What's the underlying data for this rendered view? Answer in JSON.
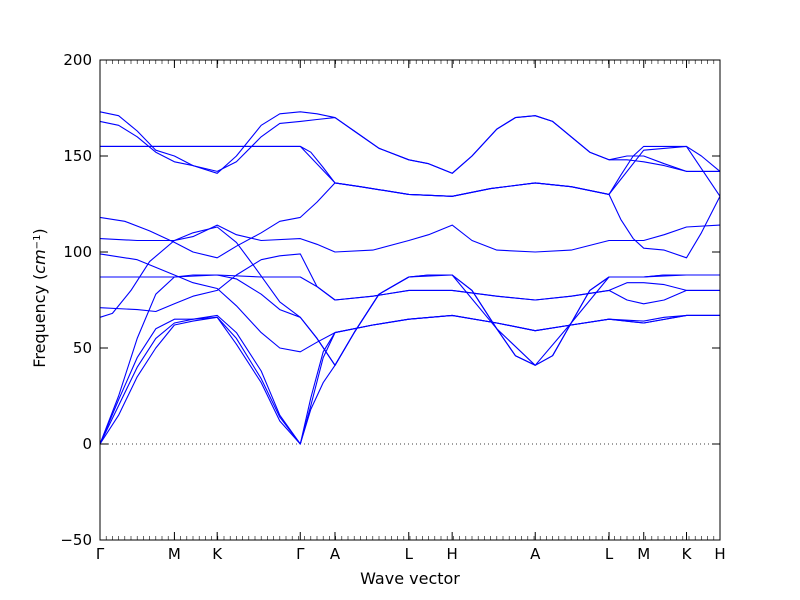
{
  "chart_data": {
    "type": "line",
    "xlabel": "Wave vector",
    "ylabel": "Frequency (",
    "ylabel_unit": "cm",
    "ylabel_exp": "−1",
    "ylabel_close": ")",
    "ylim": [
      -50,
      200
    ],
    "yticks": [
      -50,
      0,
      50,
      100,
      150,
      200
    ],
    "ytick_labels": [
      "−50",
      "0",
      "50",
      "100",
      "150",
      "200"
    ],
    "x_points": [
      {
        "label": "Γ",
        "x": 0.0
      },
      {
        "label": "M",
        "x": 0.12
      },
      {
        "label": "K",
        "x": 0.189
      },
      {
        "label": "Γ",
        "x": 0.323
      },
      {
        "label": "A",
        "x": 0.379
      },
      {
        "label": "L",
        "x": 0.498
      },
      {
        "label": "H",
        "x": 0.568
      },
      {
        "label": "A",
        "x": 0.702
      },
      {
        "label": "L",
        "x": 0.821
      },
      {
        "label": "M",
        "x": 0.877
      },
      {
        "label": "K",
        "x": 0.946
      },
      {
        "label": "H",
        "x": 1.0
      }
    ],
    "zero_line": true,
    "series_color": "#0000ff",
    "branches": [
      [
        [
          0,
          173
        ],
        [
          0.03,
          171
        ],
        [
          0.06,
          163
        ],
        [
          0.09,
          153
        ],
        [
          0.12,
          150
        ],
        [
          0.15,
          145
        ],
        [
          0.189,
          141
        ],
        [
          0.22,
          150
        ],
        [
          0.26,
          166
        ],
        [
          0.29,
          172
        ],
        [
          0.323,
          173
        ],
        [
          0.35,
          172
        ],
        [
          0.379,
          170
        ],
        [
          0.41,
          163
        ],
        [
          0.45,
          154
        ],
        [
          0.498,
          148
        ],
        [
          0.53,
          146
        ],
        [
          0.568,
          141
        ],
        [
          0.6,
          150
        ],
        [
          0.64,
          164
        ],
        [
          0.67,
          170
        ],
        [
          0.702,
          171
        ],
        [
          0.73,
          168
        ],
        [
          0.76,
          160
        ],
        [
          0.79,
          152
        ],
        [
          0.821,
          148
        ],
        [
          0.85,
          150
        ],
        [
          0.877,
          150
        ],
        [
          0.91,
          146
        ],
        [
          0.946,
          142
        ],
        [
          1,
          142
        ]
      ],
      [
        [
          0,
          168
        ],
        [
          0.03,
          166
        ],
        [
          0.06,
          160
        ],
        [
          0.09,
          152
        ],
        [
          0.12,
          147
        ],
        [
          0.15,
          145
        ],
        [
          0.189,
          142
        ],
        [
          0.22,
          147
        ],
        [
          0.26,
          160
        ],
        [
          0.29,
          167
        ],
        [
          0.323,
          168
        ],
        [
          0.35,
          169
        ],
        [
          0.379,
          170
        ],
        [
          0.41,
          163
        ],
        [
          0.45,
          154
        ],
        [
          0.498,
          148
        ],
        [
          0.53,
          146
        ],
        [
          0.568,
          141
        ],
        [
          0.6,
          150
        ],
        [
          0.64,
          164
        ],
        [
          0.67,
          170
        ],
        [
          0.702,
          171
        ],
        [
          0.73,
          168
        ],
        [
          0.76,
          160
        ],
        [
          0.79,
          152
        ],
        [
          0.821,
          148
        ],
        [
          0.85,
          148
        ],
        [
          0.877,
          147
        ],
        [
          0.91,
          145
        ],
        [
          0.946,
          142
        ],
        [
          1,
          142
        ]
      ],
      [
        [
          0,
          155
        ],
        [
          0.12,
          155
        ],
        [
          0.189,
          155
        ],
        [
          0.323,
          155
        ],
        [
          0.34,
          152
        ],
        [
          0.36,
          144
        ],
        [
          0.379,
          136
        ],
        [
          0.42,
          134
        ],
        [
          0.498,
          130
        ],
        [
          0.568,
          129
        ],
        [
          0.63,
          133
        ],
        [
          0.702,
          136
        ],
        [
          0.76,
          134
        ],
        [
          0.821,
          130
        ],
        [
          0.84,
          140
        ],
        [
          0.86,
          150
        ],
        [
          0.877,
          155
        ],
        [
          0.946,
          155
        ],
        [
          0.97,
          150
        ],
        [
          1,
          142
        ]
      ],
      [
        [
          0,
          155
        ],
        [
          0.12,
          155
        ],
        [
          0.189,
          155
        ],
        [
          0.323,
          155
        ],
        [
          0.379,
          136
        ],
        [
          0.42,
          134
        ],
        [
          0.498,
          130
        ],
        [
          0.568,
          129
        ],
        [
          0.63,
          133
        ],
        [
          0.702,
          136
        ],
        [
          0.76,
          134
        ],
        [
          0.821,
          130
        ],
        [
          0.877,
          153
        ],
        [
          0.946,
          155
        ],
        [
          1,
          129
        ]
      ],
      [
        [
          0,
          118
        ],
        [
          0.04,
          116
        ],
        [
          0.08,
          111
        ],
        [
          0.12,
          105
        ],
        [
          0.15,
          100
        ],
        [
          0.189,
          97
        ],
        [
          0.22,
          103
        ],
        [
          0.26,
          110
        ],
        [
          0.29,
          116
        ],
        [
          0.323,
          118
        ],
        [
          0.35,
          126
        ],
        [
          0.379,
          136
        ],
        [
          0.42,
          134
        ],
        [
          0.498,
          130
        ],
        [
          0.568,
          129
        ],
        [
          0.63,
          133
        ],
        [
          0.702,
          136
        ],
        [
          0.76,
          134
        ],
        [
          0.821,
          130
        ],
        [
          0.84,
          117
        ],
        [
          0.86,
          107
        ],
        [
          0.877,
          102
        ],
        [
          0.91,
          101
        ],
        [
          0.946,
          97
        ],
        [
          0.97,
          110
        ],
        [
          1,
          129
        ]
      ],
      [
        [
          0,
          107
        ],
        [
          0.06,
          106
        ],
        [
          0.12,
          106
        ],
        [
          0.15,
          108
        ],
        [
          0.189,
          114
        ],
        [
          0.22,
          109
        ],
        [
          0.26,
          106
        ],
        [
          0.323,
          107
        ],
        [
          0.35,
          104
        ],
        [
          0.379,
          100
        ],
        [
          0.44,
          101
        ],
        [
          0.498,
          106
        ],
        [
          0.53,
          109
        ],
        [
          0.568,
          114
        ],
        [
          0.6,
          106
        ],
        [
          0.64,
          101
        ],
        [
          0.702,
          100
        ],
        [
          0.76,
          101
        ],
        [
          0.821,
          106
        ],
        [
          0.877,
          106
        ],
        [
          0.91,
          109
        ],
        [
          0.946,
          113
        ],
        [
          1,
          114
        ]
      ],
      [
        [
          0,
          99
        ],
        [
          0.06,
          96
        ],
        [
          0.12,
          88
        ],
        [
          0.15,
          84
        ],
        [
          0.189,
          81
        ],
        [
          0.22,
          72
        ],
        [
          0.26,
          58
        ],
        [
          0.29,
          50
        ],
        [
          0.323,
          48
        ],
        [
          0.35,
          53
        ],
        [
          0.379,
          58
        ],
        [
          0.44,
          62
        ],
        [
          0.498,
          65
        ],
        [
          0.568,
          67
        ],
        [
          0.64,
          63
        ],
        [
          0.702,
          59
        ],
        [
          0.76,
          62
        ],
        [
          0.821,
          65
        ],
        [
          0.877,
          64
        ],
        [
          0.91,
          66
        ],
        [
          0.946,
          67
        ],
        [
          1,
          67
        ]
      ],
      [
        [
          0,
          87
        ],
        [
          0.12,
          87
        ],
        [
          0.189,
          88
        ],
        [
          0.26,
          87
        ],
        [
          0.323,
          87
        ],
        [
          0.35,
          82
        ],
        [
          0.379,
          75
        ],
        [
          0.44,
          77
        ],
        [
          0.498,
          80
        ],
        [
          0.568,
          80
        ],
        [
          0.64,
          77
        ],
        [
          0.702,
          75
        ],
        [
          0.76,
          77
        ],
        [
          0.821,
          80
        ],
        [
          0.85,
          84
        ],
        [
          0.877,
          84
        ],
        [
          0.91,
          83
        ],
        [
          0.946,
          80
        ],
        [
          1,
          80
        ]
      ],
      [
        [
          0,
          71
        ],
        [
          0.06,
          70
        ],
        [
          0.09,
          69
        ],
        [
          0.12,
          73
        ],
        [
          0.15,
          77
        ],
        [
          0.189,
          80
        ],
        [
          0.22,
          88
        ],
        [
          0.26,
          96
        ],
        [
          0.29,
          98
        ],
        [
          0.323,
          99
        ],
        [
          0.35,
          82
        ],
        [
          0.379,
          75
        ],
        [
          0.44,
          77
        ],
        [
          0.498,
          80
        ],
        [
          0.568,
          80
        ],
        [
          0.64,
          77
        ],
        [
          0.702,
          75
        ],
        [
          0.76,
          77
        ],
        [
          0.821,
          80
        ],
        [
          0.85,
          75
        ],
        [
          0.877,
          73
        ],
        [
          0.91,
          75
        ],
        [
          0.946,
          80
        ],
        [
          1,
          80
        ]
      ],
      [
        [
          0,
          66
        ],
        [
          0.02,
          68
        ],
        [
          0.05,
          80
        ],
        [
          0.08,
          95
        ],
        [
          0.12,
          106
        ],
        [
          0.15,
          110
        ],
        [
          0.189,
          113
        ],
        [
          0.22,
          105
        ],
        [
          0.25,
          92
        ],
        [
          0.29,
          74
        ],
        [
          0.323,
          66
        ],
        [
          0.35,
          55
        ],
        [
          0.379,
          41
        ],
        [
          0.41,
          58
        ],
        [
          0.45,
          78
        ],
        [
          0.498,
          87
        ],
        [
          0.53,
          88
        ],
        [
          0.568,
          88
        ],
        [
          0.6,
          80
        ],
        [
          0.64,
          60
        ],
        [
          0.67,
          46
        ],
        [
          0.702,
          41
        ],
        [
          0.73,
          46
        ],
        [
          0.76,
          63
        ],
        [
          0.79,
          80
        ],
        [
          0.821,
          87
        ],
        [
          0.877,
          87
        ],
        [
          0.91,
          88
        ],
        [
          0.946,
          88
        ],
        [
          1,
          88
        ]
      ],
      [
        [
          0,
          0
        ],
        [
          0.03,
          25
        ],
        [
          0.06,
          55
        ],
        [
          0.09,
          78
        ],
        [
          0.12,
          87
        ],
        [
          0.15,
          88
        ],
        [
          0.189,
          88
        ],
        [
          0.22,
          86
        ],
        [
          0.26,
          78
        ],
        [
          0.29,
          70
        ],
        [
          0.323,
          66
        ],
        [
          0.35,
          55
        ],
        [
          0.379,
          41
        ],
        [
          0.41,
          58
        ],
        [
          0.45,
          78
        ],
        [
          0.498,
          87
        ],
        [
          0.53,
          88
        ],
        [
          0.568,
          88
        ],
        [
          0.6,
          80
        ],
        [
          0.64,
          60
        ],
        [
          0.67,
          46
        ],
        [
          0.702,
          41
        ],
        [
          0.73,
          46
        ],
        [
          0.76,
          63
        ],
        [
          0.79,
          80
        ],
        [
          0.821,
          87
        ],
        [
          0.877,
          87
        ],
        [
          0.91,
          88
        ],
        [
          0.946,
          88
        ],
        [
          1,
          88
        ]
      ],
      [
        [
          0,
          0
        ],
        [
          0.03,
          23
        ],
        [
          0.06,
          45
        ],
        [
          0.09,
          60
        ],
        [
          0.12,
          65
        ],
        [
          0.15,
          65
        ],
        [
          0.189,
          67
        ],
        [
          0.22,
          58
        ],
        [
          0.26,
          38
        ],
        [
          0.29,
          15
        ],
        [
          0.323,
          0
        ],
        [
          0.34,
          20
        ],
        [
          0.36,
          45
        ],
        [
          0.379,
          58
        ],
        [
          0.44,
          62
        ],
        [
          0.498,
          65
        ],
        [
          0.568,
          67
        ],
        [
          0.64,
          63
        ],
        [
          0.702,
          59
        ],
        [
          0.76,
          62
        ],
        [
          0.821,
          65
        ],
        [
          0.877,
          63
        ],
        [
          0.946,
          67
        ],
        [
          1,
          67
        ]
      ],
      [
        [
          0,
          0
        ],
        [
          0.03,
          20
        ],
        [
          0.06,
          40
        ],
        [
          0.09,
          55
        ],
        [
          0.12,
          63
        ],
        [
          0.15,
          65
        ],
        [
          0.189,
          66
        ],
        [
          0.22,
          55
        ],
        [
          0.26,
          34
        ],
        [
          0.29,
          14
        ],
        [
          0.323,
          0
        ],
        [
          0.34,
          18
        ],
        [
          0.36,
          32
        ],
        [
          0.379,
          41
        ],
        [
          0.41,
          58
        ],
        [
          0.45,
          78
        ],
        [
          0.498,
          87
        ],
        [
          0.568,
          88
        ],
        [
          0.64,
          60
        ],
        [
          0.702,
          41
        ],
        [
          0.76,
          63
        ],
        [
          0.821,
          87
        ],
        [
          0.877,
          87
        ],
        [
          0.946,
          88
        ],
        [
          1,
          88
        ]
      ],
      [
        [
          0,
          0
        ],
        [
          0.03,
          15
        ],
        [
          0.06,
          35
        ],
        [
          0.09,
          50
        ],
        [
          0.12,
          62
        ],
        [
          0.15,
          64
        ],
        [
          0.189,
          66
        ],
        [
          0.22,
          52
        ],
        [
          0.26,
          32
        ],
        [
          0.29,
          12
        ],
        [
          0.323,
          0
        ],
        [
          0.34,
          24
        ],
        [
          0.36,
          48
        ],
        [
          0.379,
          58
        ],
        [
          0.44,
          62
        ],
        [
          0.498,
          65
        ],
        [
          0.568,
          67
        ],
        [
          0.64,
          63
        ],
        [
          0.702,
          59
        ],
        [
          0.76,
          62
        ],
        [
          0.821,
          65
        ],
        [
          0.877,
          63
        ],
        [
          0.946,
          67
        ],
        [
          1,
          67
        ]
      ]
    ]
  }
}
